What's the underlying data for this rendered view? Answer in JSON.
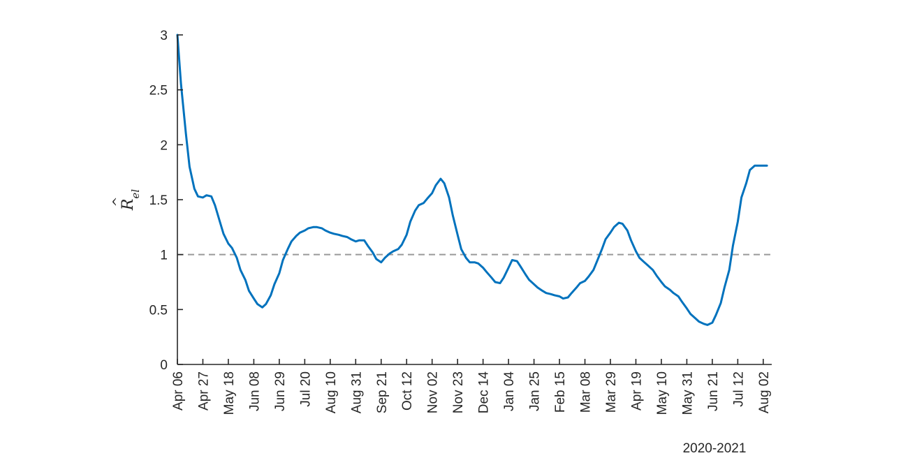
{
  "chart_data": {
    "type": "line",
    "xlabel": "2020-2021",
    "ylabel_base": "R",
    "ylabel_sub": "el",
    "ylim": [
      0,
      3
    ],
    "yticks": [
      "0",
      "0.5",
      "1",
      "1.5",
      "2",
      "2.5",
      "3"
    ],
    "xlim": [
      "2020-04-06",
      "2021-08-09"
    ],
    "xticks": [
      {
        "date": "2020-04-06",
        "label": "Apr 06"
      },
      {
        "date": "2020-04-27",
        "label": "Apr 27"
      },
      {
        "date": "2020-05-18",
        "label": "May 18"
      },
      {
        "date": "2020-06-08",
        "label": "Jun 08"
      },
      {
        "date": "2020-06-29",
        "label": "Jun 29"
      },
      {
        "date": "2020-07-20",
        "label": "Jul 20"
      },
      {
        "date": "2020-08-10",
        "label": "Aug 10"
      },
      {
        "date": "2020-08-31",
        "label": "Aug 31"
      },
      {
        "date": "2020-09-21",
        "label": "Sep 21"
      },
      {
        "date": "2020-10-12",
        "label": "Oct 12"
      },
      {
        "date": "2020-11-02",
        "label": "Nov 02"
      },
      {
        "date": "2020-11-23",
        "label": "Nov 23"
      },
      {
        "date": "2020-12-14",
        "label": "Dec 14"
      },
      {
        "date": "2021-01-04",
        "label": "Jan 04"
      },
      {
        "date": "2021-01-25",
        "label": "Jan 25"
      },
      {
        "date": "2021-02-15",
        "label": "Feb 15"
      },
      {
        "date": "2021-03-08",
        "label": "Mar 08"
      },
      {
        "date": "2021-03-29",
        "label": "Mar 29"
      },
      {
        "date": "2021-04-19",
        "label": "Apr 19"
      },
      {
        "date": "2021-05-10",
        "label": "May 10"
      },
      {
        "date": "2021-05-31",
        "label": "May 31"
      },
      {
        "date": "2021-06-21",
        "label": "Jun 21"
      },
      {
        "date": "2021-07-12",
        "label": "Jul 12"
      },
      {
        "date": "2021-08-02",
        "label": "Aug 02"
      }
    ],
    "reference_line": {
      "y": 1,
      "style": "dashed",
      "color": "#999999"
    },
    "series": [
      {
        "color": "#0072BD",
        "points": [
          [
            "2020-04-06",
            3.0
          ],
          [
            "2020-04-09",
            2.55
          ],
          [
            "2020-04-13",
            2.1
          ],
          [
            "2020-04-16",
            1.8
          ],
          [
            "2020-04-20",
            1.6
          ],
          [
            "2020-04-23",
            1.53
          ],
          [
            "2020-04-27",
            1.52
          ],
          [
            "2020-04-30",
            1.54
          ],
          [
            "2020-05-04",
            1.53
          ],
          [
            "2020-05-07",
            1.45
          ],
          [
            "2020-05-11",
            1.3
          ],
          [
            "2020-05-14",
            1.19
          ],
          [
            "2020-05-18",
            1.1
          ],
          [
            "2020-05-21",
            1.06
          ],
          [
            "2020-05-25",
            0.97
          ],
          [
            "2020-05-28",
            0.86
          ],
          [
            "2020-06-01",
            0.77
          ],
          [
            "2020-06-04",
            0.67
          ],
          [
            "2020-06-08",
            0.6
          ],
          [
            "2020-06-11",
            0.55
          ],
          [
            "2020-06-15",
            0.52
          ],
          [
            "2020-06-18",
            0.55
          ],
          [
            "2020-06-22",
            0.63
          ],
          [
            "2020-06-25",
            0.73
          ],
          [
            "2020-06-29",
            0.83
          ],
          [
            "2020-07-02",
            0.95
          ],
          [
            "2020-07-06",
            1.05
          ],
          [
            "2020-07-09",
            1.12
          ],
          [
            "2020-07-13",
            1.17
          ],
          [
            "2020-07-16",
            1.2
          ],
          [
            "2020-07-20",
            1.22
          ],
          [
            "2020-07-23",
            1.24
          ],
          [
            "2020-07-27",
            1.25
          ],
          [
            "2020-07-30",
            1.25
          ],
          [
            "2020-08-03",
            1.24
          ],
          [
            "2020-08-06",
            1.22
          ],
          [
            "2020-08-10",
            1.2
          ],
          [
            "2020-08-13",
            1.19
          ],
          [
            "2020-08-17",
            1.18
          ],
          [
            "2020-08-20",
            1.17
          ],
          [
            "2020-08-24",
            1.16
          ],
          [
            "2020-08-27",
            1.14
          ],
          [
            "2020-08-31",
            1.12
          ],
          [
            "2020-09-03",
            1.13
          ],
          [
            "2020-09-07",
            1.13
          ],
          [
            "2020-09-10",
            1.08
          ],
          [
            "2020-09-14",
            1.02
          ],
          [
            "2020-09-17",
            0.96
          ],
          [
            "2020-09-21",
            0.93
          ],
          [
            "2020-09-24",
            0.97
          ],
          [
            "2020-09-28",
            1.01
          ],
          [
            "2020-10-01",
            1.03
          ],
          [
            "2020-10-05",
            1.05
          ],
          [
            "2020-10-08",
            1.09
          ],
          [
            "2020-10-12",
            1.18
          ],
          [
            "2020-10-15",
            1.3
          ],
          [
            "2020-10-19",
            1.4
          ],
          [
            "2020-10-22",
            1.45
          ],
          [
            "2020-10-26",
            1.47
          ],
          [
            "2020-10-29",
            1.51
          ],
          [
            "2020-11-02",
            1.56
          ],
          [
            "2020-11-05",
            1.63
          ],
          [
            "2020-11-09",
            1.69
          ],
          [
            "2020-11-12",
            1.65
          ],
          [
            "2020-11-16",
            1.52
          ],
          [
            "2020-11-19",
            1.36
          ],
          [
            "2020-11-23",
            1.18
          ],
          [
            "2020-11-26",
            1.05
          ],
          [
            "2020-11-30",
            0.97
          ],
          [
            "2020-12-03",
            0.93
          ],
          [
            "2020-12-07",
            0.93
          ],
          [
            "2020-12-10",
            0.92
          ],
          [
            "2020-12-14",
            0.88
          ],
          [
            "2020-12-17",
            0.84
          ],
          [
            "2020-12-21",
            0.79
          ],
          [
            "2020-12-24",
            0.75
          ],
          [
            "2020-12-28",
            0.74
          ],
          [
            "2020-12-31",
            0.79
          ],
          [
            "2021-01-04",
            0.88
          ],
          [
            "2021-01-07",
            0.95
          ],
          [
            "2021-01-11",
            0.94
          ],
          [
            "2021-01-14",
            0.89
          ],
          [
            "2021-01-18",
            0.82
          ],
          [
            "2021-01-21",
            0.77
          ],
          [
            "2021-01-25",
            0.73
          ],
          [
            "2021-01-28",
            0.7
          ],
          [
            "2021-02-01",
            0.67
          ],
          [
            "2021-02-04",
            0.65
          ],
          [
            "2021-02-08",
            0.64
          ],
          [
            "2021-02-11",
            0.63
          ],
          [
            "2021-02-15",
            0.62
          ],
          [
            "2021-02-18",
            0.6
          ],
          [
            "2021-02-22",
            0.61
          ],
          [
            "2021-02-25",
            0.65
          ],
          [
            "2021-03-01",
            0.7
          ],
          [
            "2021-03-04",
            0.74
          ],
          [
            "2021-03-08",
            0.76
          ],
          [
            "2021-03-11",
            0.8
          ],
          [
            "2021-03-15",
            0.86
          ],
          [
            "2021-03-18",
            0.94
          ],
          [
            "2021-03-22",
            1.05
          ],
          [
            "2021-03-25",
            1.14
          ],
          [
            "2021-03-29",
            1.2
          ],
          [
            "2021-04-01",
            1.25
          ],
          [
            "2021-04-05",
            1.29
          ],
          [
            "2021-04-08",
            1.28
          ],
          [
            "2021-04-12",
            1.22
          ],
          [
            "2021-04-15",
            1.13
          ],
          [
            "2021-04-19",
            1.03
          ],
          [
            "2021-04-22",
            0.97
          ],
          [
            "2021-04-26",
            0.93
          ],
          [
            "2021-04-29",
            0.9
          ],
          [
            "2021-05-03",
            0.86
          ],
          [
            "2021-05-06",
            0.81
          ],
          [
            "2021-05-10",
            0.75
          ],
          [
            "2021-05-13",
            0.71
          ],
          [
            "2021-05-17",
            0.68
          ],
          [
            "2021-05-20",
            0.65
          ],
          [
            "2021-05-24",
            0.62
          ],
          [
            "2021-05-27",
            0.57
          ],
          [
            "2021-05-31",
            0.51
          ],
          [
            "2021-06-03",
            0.46
          ],
          [
            "2021-06-07",
            0.42
          ],
          [
            "2021-06-10",
            0.39
          ],
          [
            "2021-06-14",
            0.37
          ],
          [
            "2021-06-17",
            0.36
          ],
          [
            "2021-06-21",
            0.38
          ],
          [
            "2021-06-24",
            0.45
          ],
          [
            "2021-06-28",
            0.56
          ],
          [
            "2021-07-01",
            0.7
          ],
          [
            "2021-07-05",
            0.86
          ],
          [
            "2021-07-08",
            1.08
          ],
          [
            "2021-07-12",
            1.3
          ],
          [
            "2021-07-15",
            1.52
          ],
          [
            "2021-07-19",
            1.65
          ],
          [
            "2021-07-22",
            1.77
          ],
          [
            "2021-07-26",
            1.81
          ],
          [
            "2021-07-29",
            1.81
          ],
          [
            "2021-08-02",
            1.81
          ],
          [
            "2021-08-05",
            1.81
          ]
        ]
      }
    ]
  }
}
